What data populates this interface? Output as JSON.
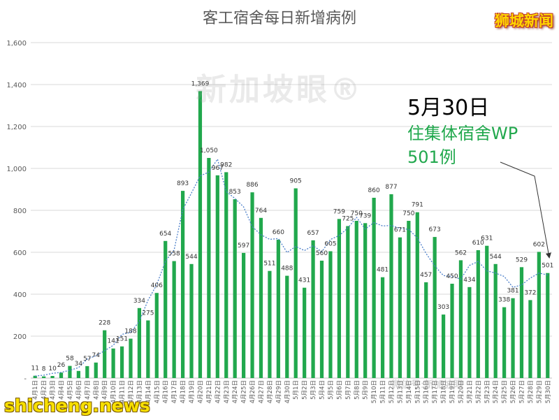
{
  "title": "客工宿舍每日新增病例",
  "brand": "狮城新闻",
  "footer_brand": "shicheng.news",
  "watermark": "新加坡眼®",
  "watermark2": "微信号:新加坡眼",
  "annotation": {
    "date": "5月30日",
    "line1": "住集体宿舍WP",
    "line2": "501例"
  },
  "colors": {
    "bar": "#21a84d",
    "trend": "#4a7ec9",
    "grid": "#d9d9d9",
    "axis_text": "#595959"
  },
  "chart_data": {
    "type": "bar",
    "title": "客工宿舍每日新增病例",
    "ylim": [
      0,
      1600
    ],
    "yticks": [
      0,
      200,
      400,
      600,
      800,
      1000,
      1200,
      1400,
      1600
    ],
    "ytick_labels": [
      "-",
      "200",
      "400",
      "600",
      "800",
      "1,000",
      "1,200",
      "1,400",
      "1,600"
    ],
    "grid": true,
    "categories": [
      "4月1日",
      "4月2日",
      "4月3日",
      "4月4日",
      "4月5日",
      "4月6日",
      "4月7日",
      "4月8日",
      "4月9日",
      "4月10日",
      "4月11日",
      "4月12日",
      "4月13日",
      "4月14日",
      "4月15日",
      "4月16日",
      "4月17日",
      "4月18日",
      "4月19日",
      "4月20日",
      "4月21日",
      "4月22日",
      "4月23日",
      "4月24日",
      "4月25日",
      "4月26日",
      "4月27日",
      "4月28日",
      "4月29日",
      "4月30日",
      "5月1日",
      "5月2日",
      "5月3日",
      "5月4日",
      "5月5日",
      "5月6日",
      "5月7日",
      "5月8日",
      "5月9日",
      "5月10日",
      "5月11日",
      "5月12日",
      "5月13日",
      "5月14日",
      "5月15日",
      "5月16日",
      "5月17日",
      "5月18日",
      "5月19日",
      "5月20日",
      "5月21日",
      "5月22日",
      "5月23日",
      "5月24日",
      "5月25日",
      "5月26日",
      "5月27日",
      "5月28日",
      "5月29日",
      "5月30日"
    ],
    "values": [
      11,
      8,
      10,
      26,
      58,
      34,
      57,
      74,
      228,
      141,
      151,
      188,
      334,
      275,
      406,
      654,
      558,
      893,
      544,
      1369,
      1050,
      967,
      982,
      853,
      597,
      886,
      764,
      511,
      660,
      488,
      905,
      431,
      657,
      560,
      605,
      759,
      725,
      750,
      739,
      860,
      481,
      877,
      671,
      750,
      791,
      457,
      673,
      303,
      450,
      562,
      434,
      610,
      631,
      544,
      338,
      381,
      529,
      372,
      602,
      501
    ],
    "value_labels": [
      "11",
      "8",
      "10",
      "26",
      "58",
      "34",
      "57",
      "74",
      "228",
      "141",
      "151",
      "188",
      "334",
      "275",
      "406",
      "654",
      "558",
      "893",
      "544",
      "1,369",
      "1,050",
      "967",
      "982",
      "853",
      "597",
      "886",
      "764",
      "511",
      "660",
      "488",
      "905",
      "431",
      "657",
      "560",
      "605",
      "759",
      "725",
      "750",
      "739",
      "860",
      "481",
      "877",
      "671",
      "750",
      "791",
      "457",
      "673",
      "303",
      "450",
      "562",
      "434",
      "610",
      "631",
      "544",
      "338",
      "381",
      "529",
      "372",
      "602",
      "501"
    ],
    "trend": "moving-average"
  }
}
